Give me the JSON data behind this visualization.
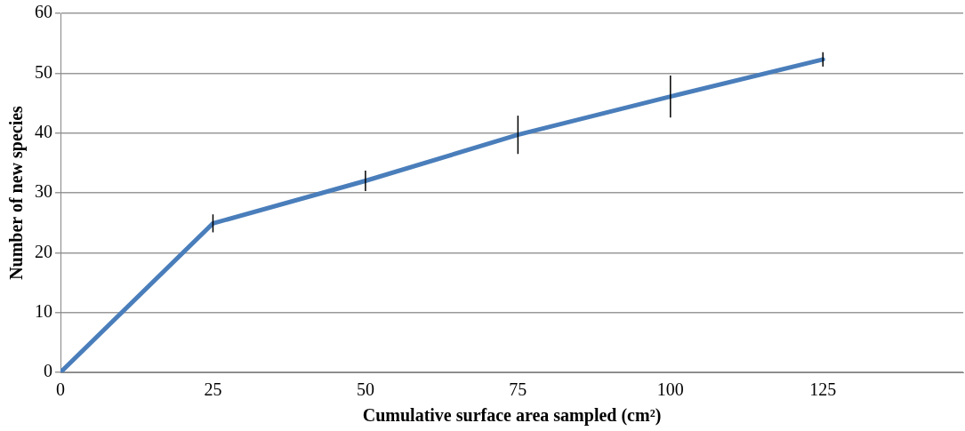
{
  "chart_data": {
    "type": "line",
    "xlabel": "Cumulative surface area sampled (cm²)",
    "ylabel": "Number of new species",
    "x": [
      0,
      25,
      50,
      75,
      100,
      125
    ],
    "series": [
      {
        "color": "#4a7ebb",
        "values": [
          0,
          24.9,
          32.0,
          39.7,
          46.1,
          52.3
        ],
        "errors": [
          null,
          1.5,
          1.7,
          3.2,
          3.5,
          1.2
        ]
      }
    ],
    "xlim": [
      0,
      148
    ],
    "xticks": [
      0,
      25,
      50,
      75,
      100,
      125
    ],
    "ylim": [
      0,
      60
    ],
    "yticks": [
      0,
      10,
      20,
      30,
      40,
      50,
      60
    ],
    "grid": "y",
    "legend": false,
    "marker": "none",
    "line_style": "solid"
  }
}
